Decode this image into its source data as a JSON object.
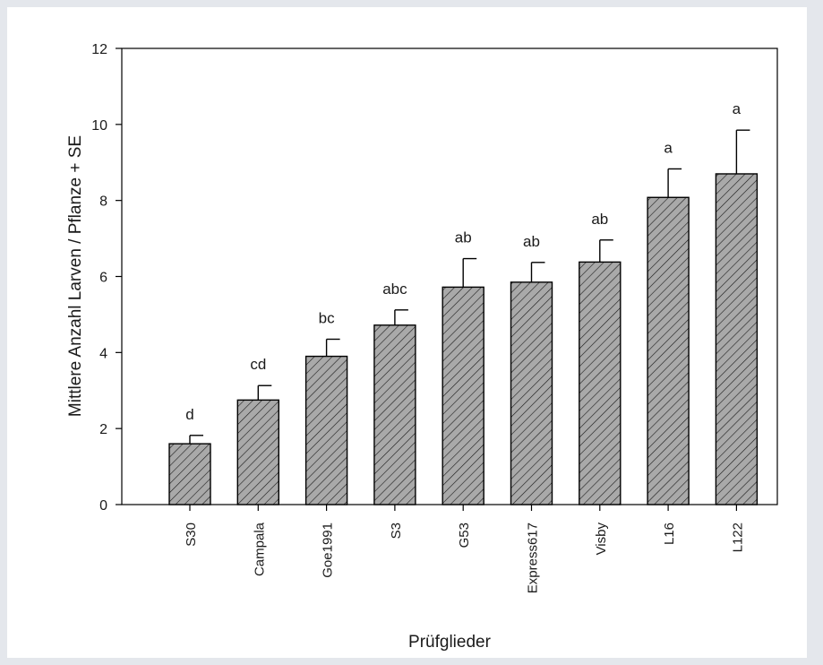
{
  "chart_data": {
    "type": "bar",
    "title": "",
    "xlabel": "Prüfglieder",
    "ylabel": "Mittlere Anzahl Larven / Pflanze + SE",
    "ylim": [
      0,
      12
    ],
    "yticks": [
      0,
      2,
      4,
      6,
      8,
      10,
      12
    ],
    "grid": false,
    "categories": [
      "S30",
      "Campala",
      "Goe1991",
      "S3",
      "G53",
      "Express617",
      "Visby",
      "L16",
      "L122"
    ],
    "values": [
      1.6,
      2.75,
      3.9,
      4.72,
      5.72,
      5.85,
      6.38,
      8.08,
      8.7
    ],
    "errors": [
      0.22,
      0.38,
      0.45,
      0.4,
      0.75,
      0.52,
      0.58,
      0.75,
      1.15
    ],
    "significance_letters": [
      "d",
      "cd",
      "bc",
      "abc",
      "ab",
      "ab",
      "ab",
      "a",
      "a"
    ],
    "bar_style": {
      "fill": "#a9a9a9",
      "hatch": "diagonal",
      "stroke": "#000000"
    }
  }
}
